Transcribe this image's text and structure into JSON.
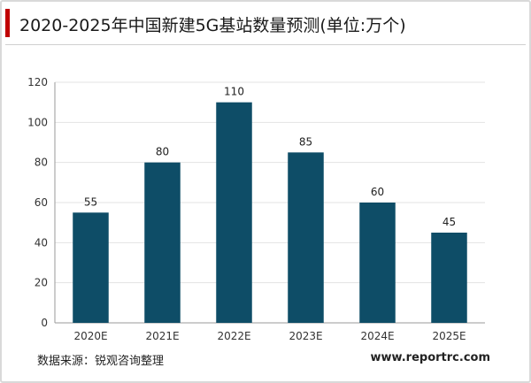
{
  "header": {
    "title": "2020-2025年中国新建5G基站数量预测(单位:万个)"
  },
  "footer": {
    "source": "数据来源：锐观咨询整理",
    "website": "www.reportrc.com"
  },
  "colors": {
    "bar": "#0e4d67",
    "accent": "#c00000",
    "grid": "#e3e3e3"
  },
  "chart_data": {
    "type": "bar",
    "categories": [
      "2020E",
      "2021E",
      "2022E",
      "2023E",
      "2024E",
      "2025E"
    ],
    "values": [
      55,
      80,
      110,
      85,
      60,
      45
    ],
    "data_labels": [
      "55",
      "80",
      "110",
      "85",
      "60",
      "45"
    ],
    "ylim": [
      0,
      120
    ],
    "yticks": [
      0,
      20,
      40,
      60,
      80,
      100,
      120
    ],
    "ytick_labels": [
      "0",
      "20",
      "40",
      "60",
      "80",
      "100",
      "120"
    ],
    "grid": true,
    "legend": "none"
  }
}
